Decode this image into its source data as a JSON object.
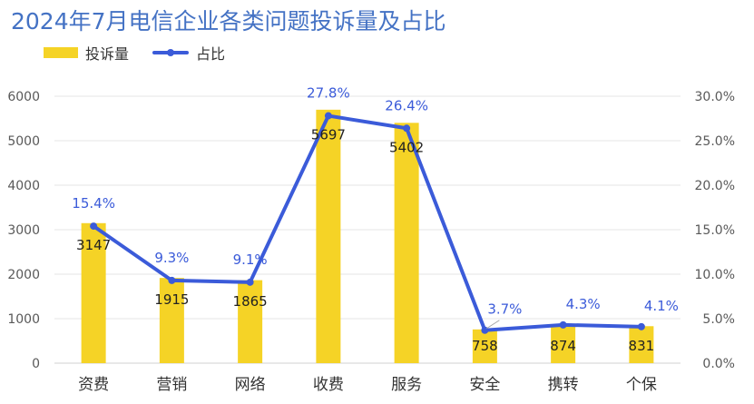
{
  "chart_data": {
    "type": "bar",
    "title": "2024年7月电信企业各类问题投诉量及占比",
    "categories": [
      "资费",
      "营销",
      "网络",
      "收费",
      "服务",
      "安全",
      "携转",
      "个保"
    ],
    "series": [
      {
        "name": "投诉量",
        "type": "bar",
        "axis": "left",
        "values": [
          3147,
          1915,
          1865,
          5697,
          5402,
          758,
          874,
          831
        ],
        "labels": [
          "3147",
          "1915",
          "1865",
          "5697",
          "5402",
          "758",
          "874",
          "831"
        ]
      },
      {
        "name": "占比",
        "type": "line",
        "axis": "right",
        "values": [
          15.4,
          9.3,
          9.1,
          27.8,
          26.4,
          3.7,
          4.3,
          4.1
        ],
        "labels": [
          "15.4%",
          "9.3%",
          "9.1%",
          "27.8%",
          "26.4%",
          "3.7%",
          "4.3%",
          "4.1%"
        ]
      }
    ],
    "y_left": {
      "range": [
        0,
        6000
      ],
      "ticks": [
        "0",
        "1000",
        "2000",
        "3000",
        "4000",
        "5000",
        "6000"
      ]
    },
    "y_right": {
      "range": [
        0,
        30
      ],
      "ticks": [
        "0.0%",
        "5.0%",
        "10.0%",
        "15.0%",
        "20.0%",
        "25.0%",
        "30.0%"
      ]
    },
    "xlabel": "",
    "ylabel": "",
    "grid": true,
    "legend": "top-left",
    "colors": {
      "bar": "#F5D326",
      "line": "#3B5BD9",
      "line_label": "#3B5BD9",
      "bar_label": "#222222",
      "axis_text": "#595959",
      "grid": "#E6E6E6",
      "title": "#4472C4"
    }
  }
}
